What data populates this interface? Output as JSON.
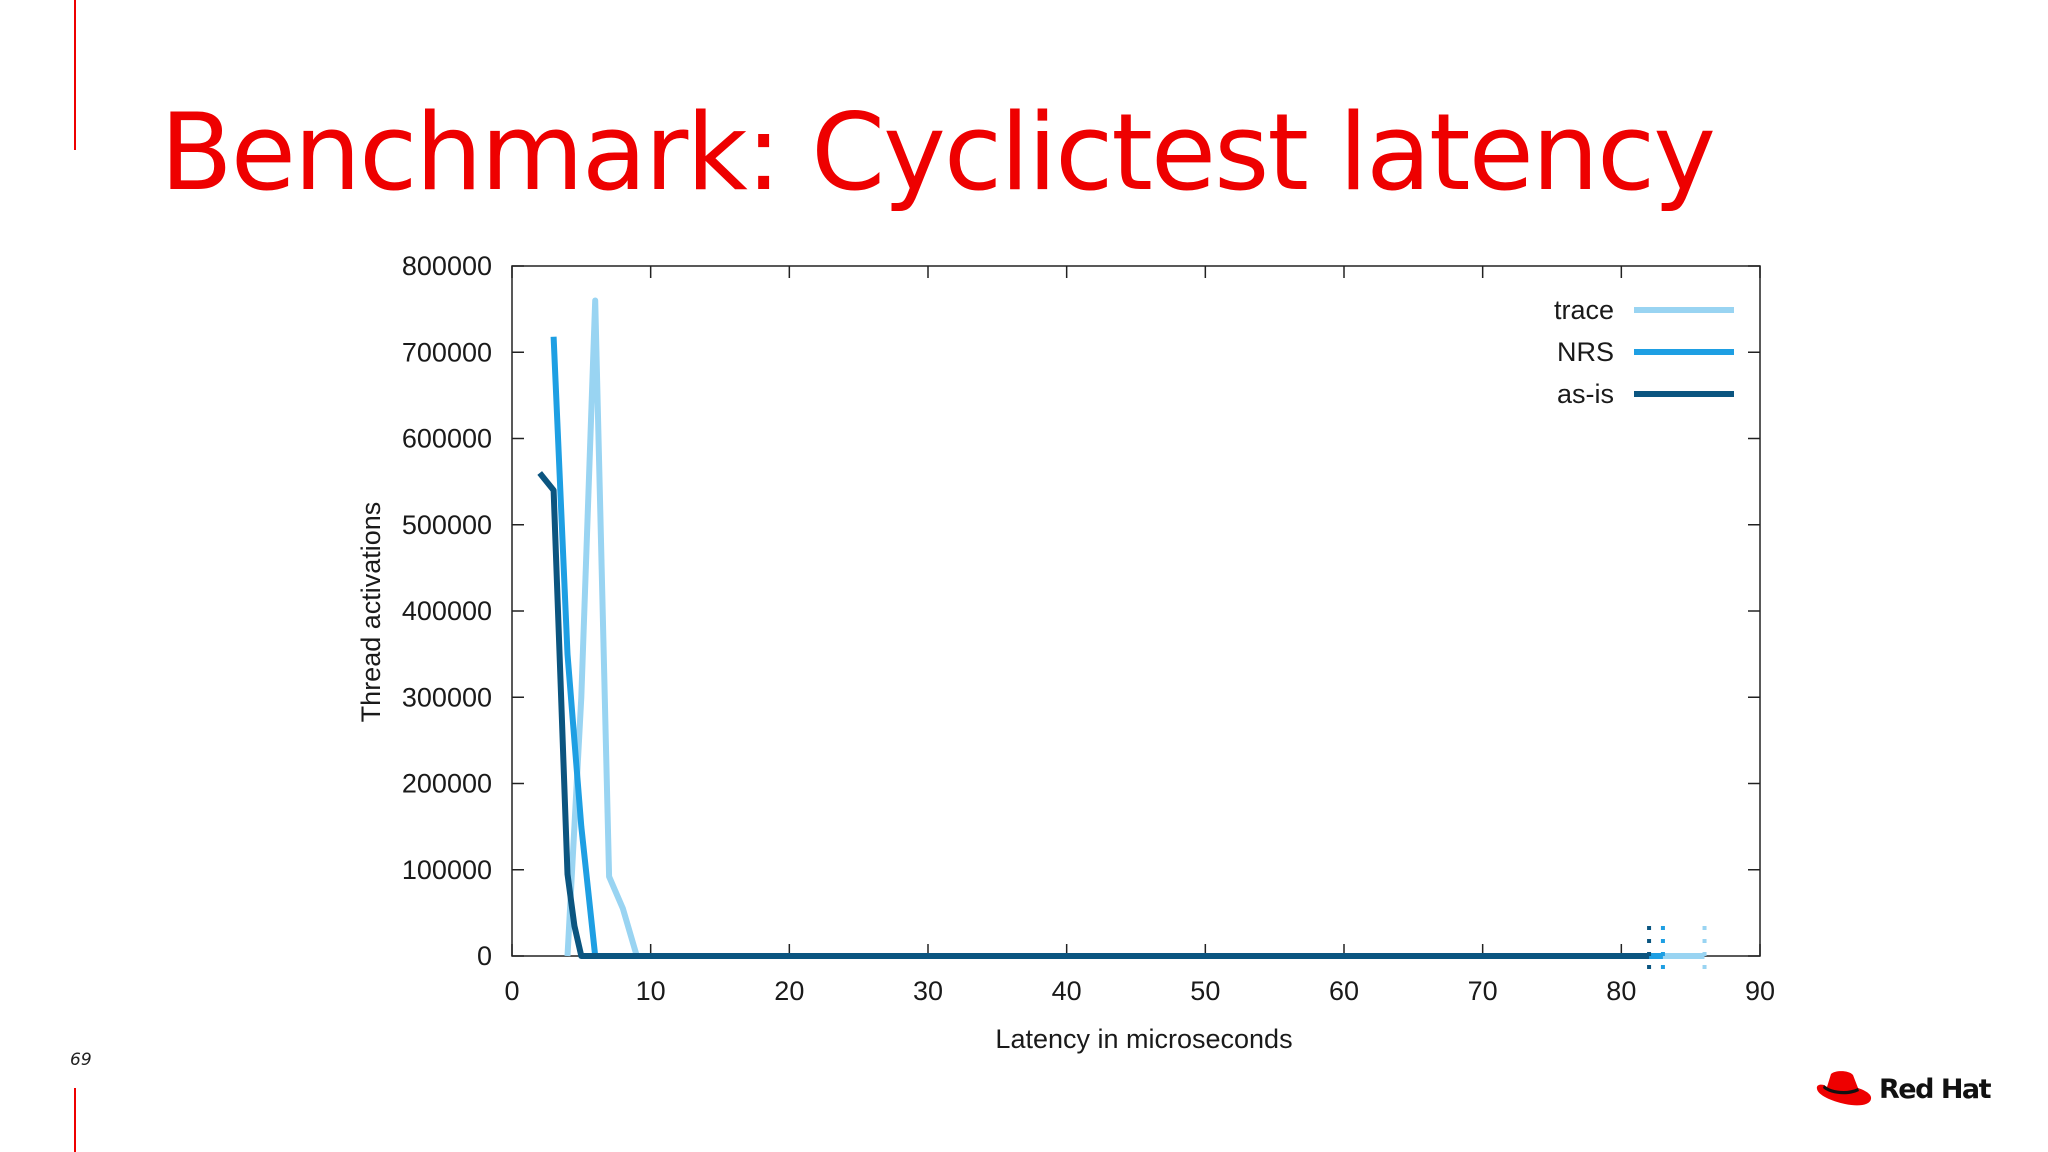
{
  "slide": {
    "title": "Benchmark: Cyclictest latency",
    "page_number": "69",
    "brand": "Red Hat"
  },
  "colors": {
    "accent": "#ee0000",
    "trace": "#99d4f2",
    "nrs": "#1e9fe3",
    "as_is": "#0b5580"
  },
  "icons": {
    "logo": "red-hat-fedora-icon"
  },
  "chart_data": {
    "type": "line",
    "title": "",
    "xlabel": "Latency in microseconds",
    "ylabel": "Thread activations",
    "xlim": [
      0,
      90
    ],
    "ylim": [
      0,
      800000
    ],
    "xticks": [
      0,
      10,
      20,
      30,
      40,
      50,
      60,
      70,
      80,
      90
    ],
    "yticks": [
      0,
      100000,
      200000,
      300000,
      400000,
      500000,
      600000,
      700000,
      800000
    ],
    "grid": false,
    "legend_position": "top-right",
    "series": [
      {
        "name": "trace",
        "color": "#99d4f2",
        "points": [
          [
            4,
            0
          ],
          [
            5,
            300000
          ],
          [
            6,
            760000
          ],
          [
            7,
            92000
          ],
          [
            8,
            55000
          ],
          [
            9,
            0
          ],
          [
            10,
            0
          ],
          [
            20,
            0
          ],
          [
            40,
            0
          ],
          [
            60,
            0
          ],
          [
            80,
            0
          ],
          [
            86,
            0
          ]
        ],
        "end_marker_x": 86
      },
      {
        "name": "NRS",
        "color": "#1e9fe3",
        "points": [
          [
            3,
            718000
          ],
          [
            4,
            350000
          ],
          [
            5,
            150000
          ],
          [
            6,
            0
          ],
          [
            10,
            0
          ],
          [
            20,
            0
          ],
          [
            40,
            0
          ],
          [
            60,
            0
          ],
          [
            80,
            0
          ],
          [
            83,
            0
          ]
        ],
        "end_marker_x": 83
      },
      {
        "name": "as-is",
        "color": "#0b5580",
        "points": [
          [
            2,
            560000
          ],
          [
            3,
            540000
          ],
          [
            3.5,
            320000
          ],
          [
            4,
            95000
          ],
          [
            4.5,
            35000
          ],
          [
            5,
            0
          ],
          [
            10,
            0
          ],
          [
            20,
            0
          ],
          [
            40,
            0
          ],
          [
            60,
            0
          ],
          [
            80,
            0
          ],
          [
            82,
            0
          ]
        ],
        "end_marker_x": 82
      }
    ]
  }
}
